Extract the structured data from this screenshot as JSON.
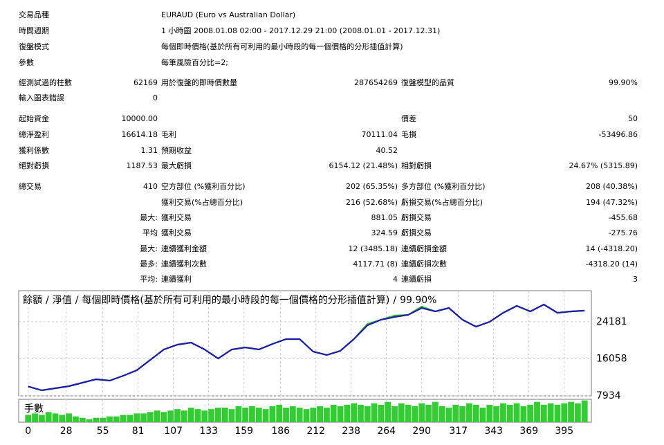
{
  "table": {
    "rows": [
      [
        "交易品種",
        null,
        "EURAUD (Euro vs Australian Dollar)",
        null,
        null,
        null
      ],
      [
        "時間週期",
        null,
        "1 小時圖 2008.01.08 02:00 - 2017.12.29 21:00 (2008.01.01 - 2017.12.31)",
        null,
        null,
        null
      ],
      [
        "復盤模式",
        null,
        "每個即時價格(基於所有可利用的最小時段的每一個價格的分形插值計算)",
        null,
        null,
        null
      ],
      [
        "參數",
        null,
        "每筆風險百分比=2;",
        null,
        null,
        null
      ],
      [
        "經測試過的柱數",
        "62169",
        "用於復盤的即時價數量",
        "287654269",
        "復盤模型的品質",
        "99.90%"
      ],
      [
        "輸入圖表錯誤",
        "0",
        null,
        null,
        null,
        null
      ],
      [
        "起始資金",
        "10000.00",
        null,
        null,
        "價差",
        "50"
      ],
      [
        "總淨盈利",
        "16614.18",
        "毛利",
        "70111.04",
        "毛損",
        "-53496.86"
      ],
      [
        "獲利係數",
        "1.31",
        "預期收益",
        "40.52",
        null,
        null
      ],
      [
        "絕對虧損",
        "1187.53",
        "最大虧損",
        "6154.12 (21.48%)",
        "相對虧損",
        "24.67% (5315.89)"
      ],
      [
        "總交易",
        "410",
        "空方部位 (%獲利百分比)",
        "202 (65.35%)",
        "多方部位 (%獲利百分比)",
        "208 (40.38%)"
      ],
      [
        null,
        null,
        "獲利交易(%占總百分比)",
        "216 (52.68%)",
        "虧損交易(%占總百分比)",
        "194 (47.32%)"
      ],
      [
        null,
        "最大:",
        "獲利交易",
        "881.05",
        "虧損交易",
        "-455.68"
      ],
      [
        null,
        "平均",
        "獲利交易",
        "324.59",
        "虧損交易",
        "-275.76"
      ],
      [
        null,
        "最大:",
        "連續獲利金額",
        "12 (3485.18)",
        "連續虧損金額",
        "14 (-4318.20)"
      ],
      [
        null,
        "最多:",
        "連續獲利次數",
        "4117.71 (8)",
        "連續虧損次數",
        "-4318.20 (14)"
      ],
      [
        null,
        "平均:",
        "連續獲利",
        "4",
        "連續虧損",
        "3"
      ]
    ]
  },
  "chart_data": {
    "type": "line",
    "separator": "/",
    "subtitle": "每個即時價格(基於所有可利用的最小時段的每一個價格的分形插值計算)",
    "quality": "99.90%",
    "x": [
      0,
      10,
      20,
      30,
      40,
      50,
      60,
      70,
      80,
      90,
      100,
      110,
      120,
      130,
      140,
      150,
      160,
      170,
      180,
      190,
      200,
      210,
      220,
      230,
      240,
      250,
      260,
      270,
      280,
      290,
      300,
      310,
      320,
      330,
      340,
      350,
      360,
      370,
      380,
      390,
      400,
      410
    ],
    "series": [
      {
        "name": "淨值",
        "color": "#33bb33",
        "values": [
          10000,
          9148,
          9603,
          10059,
          10817,
          11576,
          11274,
          12335,
          13549,
          15825,
          18101,
          19164,
          19619,
          18101,
          16129,
          18101,
          18557,
          18101,
          19315,
          20378,
          20378,
          17646,
          16887,
          17798,
          20378,
          23713,
          24627,
          25534,
          25689,
          27506,
          26448,
          27206,
          24627,
          23109,
          24171,
          26144,
          27662,
          26448,
          27965,
          26144,
          26448,
          26614
        ]
      },
      {
        "name": "餘額",
        "color": "#1c1ca8",
        "values": [
          10000,
          9148,
          9603,
          10059,
          10817,
          11576,
          11274,
          12335,
          13549,
          15825,
          18101,
          19164,
          19619,
          18101,
          16129,
          18101,
          18557,
          18101,
          19315,
          20378,
          20378,
          17646,
          16887,
          17798,
          20378,
          23413,
          24627,
          25234,
          25689,
          27206,
          26448,
          27206,
          24627,
          23109,
          24171,
          26144,
          27662,
          26448,
          27965,
          26144,
          26448,
          26614
        ]
      }
    ],
    "xlim": [
      -7,
      415
    ],
    "xticks": [
      0,
      28,
      55,
      81,
      107,
      133,
      159,
      186,
      212,
      238,
      264,
      290,
      317,
      343,
      369,
      395
    ],
    "ylim": [
      7934,
      31000
    ],
    "yticks": [
      7934,
      16058,
      24181
    ],
    "grid": true,
    "volume": {
      "name": "手數",
      "color": "#33cc33",
      "x": [
        0,
        5,
        10,
        15,
        20,
        25,
        30,
        35,
        40,
        45,
        50,
        55,
        60,
        65,
        70,
        75,
        80,
        85,
        90,
        95,
        100,
        105,
        110,
        115,
        120,
        125,
        130,
        135,
        140,
        145,
        150,
        155,
        160,
        165,
        170,
        175,
        180,
        185,
        190,
        195,
        200,
        205,
        210,
        215,
        220,
        225,
        230,
        235,
        240,
        245,
        250,
        255,
        260,
        265,
        270,
        275,
        280,
        285,
        290,
        295,
        300,
        305,
        310,
        315,
        320,
        325,
        330,
        335,
        340,
        345,
        350,
        355,
        360,
        365,
        370,
        375,
        380,
        385,
        390,
        395,
        400,
        405,
        410
      ],
      "values": [
        0.5,
        0.6,
        0.5,
        0.7,
        0.6,
        0.5,
        0.6,
        0.4,
        0.3,
        0.2,
        0.3,
        0.3,
        0.4,
        0.4,
        0.5,
        0.5,
        0.6,
        0.6,
        0.7,
        0.8,
        0.7,
        0.8,
        0.9,
        0.8,
        1.0,
        0.9,
        0.8,
        0.9,
        1.0,
        1.0,
        0.9,
        1.1,
        1.0,
        1.1,
        1.0,
        0.9,
        1.1,
        1.2,
        1.0,
        1.1,
        1.0,
        0.9,
        1.0,
        1.1,
        1.0,
        1.2,
        1.1,
        1.2,
        1.3,
        1.2,
        1.1,
        1.3,
        1.2,
        1.4,
        1.1,
        1.3,
        1.2,
        1.1,
        1.3,
        1.2,
        1.4,
        1.1,
        1.0,
        1.2,
        1.1,
        1.3,
        1.2,
        1.0,
        1.2,
        1.1,
        1.3,
        1.2,
        1.3,
        1.1,
        1.2,
        1.4,
        1.2,
        1.3,
        1.2,
        1.3,
        1.4,
        1.3,
        1.5
      ]
    }
  }
}
